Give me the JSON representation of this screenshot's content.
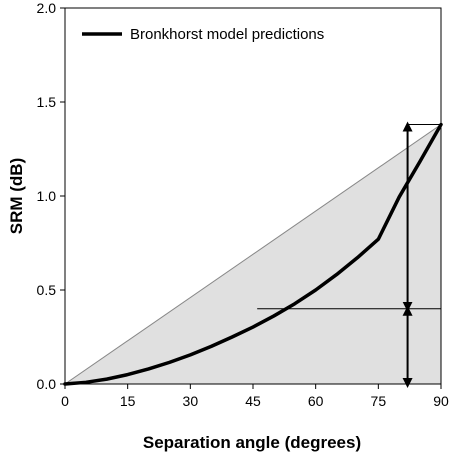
{
  "chart_data": {
    "type": "line",
    "title": "",
    "xlabel": "Separation angle (degrees)",
    "ylabel": "SRM (dB)",
    "xlim": [
      0,
      90
    ],
    "ylim": [
      0,
      2.0
    ],
    "x_ticks": [
      "0",
      "15",
      "30",
      "45",
      "60",
      "75",
      "90"
    ],
    "y_ticks": [
      "0.0",
      "0.5",
      "1.0",
      "1.5",
      "2.0"
    ],
    "grid": false,
    "legend_position": "top-left",
    "series": [
      {
        "name": "Bronkhorst model predictions",
        "color": "#000000",
        "x": [
          0,
          5,
          10,
          15,
          20,
          25,
          30,
          35,
          40,
          45,
          50,
          55,
          60,
          65,
          70,
          75,
          80,
          85,
          90
        ],
        "y": [
          0,
          0.009,
          0.026,
          0.05,
          0.08,
          0.115,
          0.155,
          0.2,
          0.25,
          0.303,
          0.362,
          0.427,
          0.5,
          0.582,
          0.672,
          0.77,
          0.995,
          1.185,
          1.38
        ]
      }
    ],
    "reference_line": {
      "x": [
        0,
        90
      ],
      "y": [
        0,
        1.38
      ],
      "color": "#888888"
    },
    "shaded_region_color": "#e0e0e0",
    "annotations": {
      "arrow_x": 82,
      "top_y": 1.38,
      "mid_y": 0.4,
      "bottom_y": 0,
      "mid_line_x_start": 46
    }
  }
}
